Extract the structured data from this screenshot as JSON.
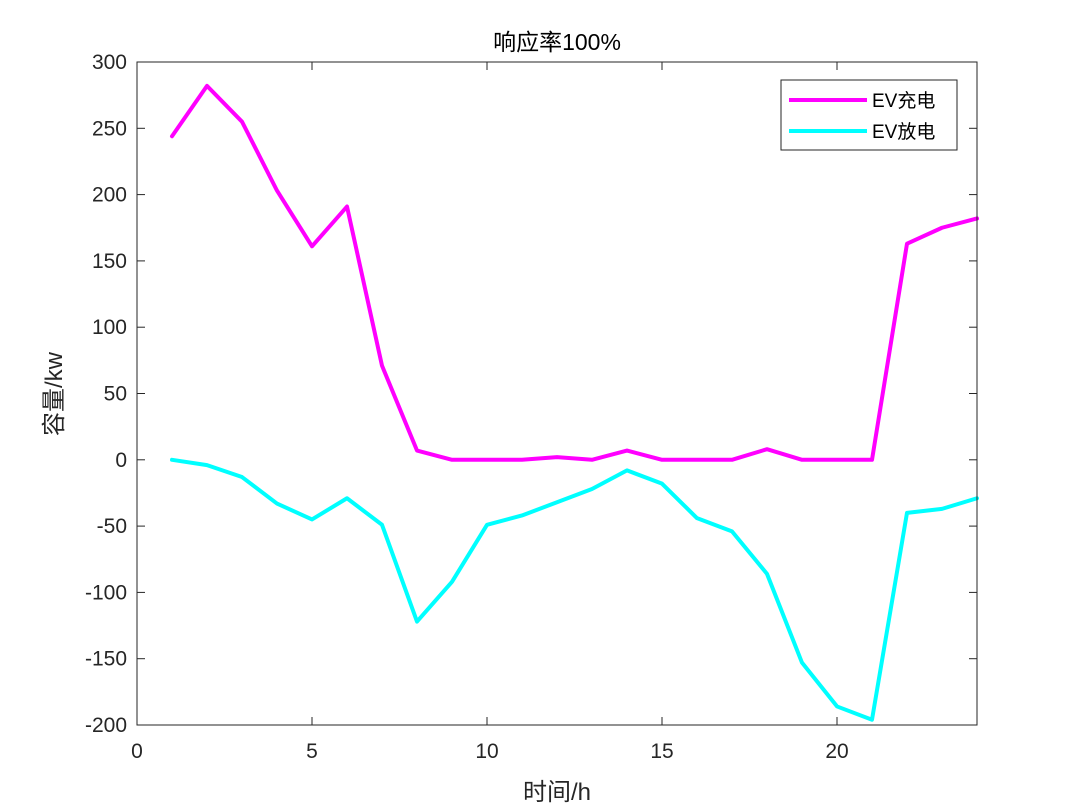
{
  "chart_data": {
    "type": "line",
    "title": "响应率100%",
    "xlabel": "时间/h",
    "ylabel": "容量/kw",
    "xlim": [
      0,
      24
    ],
    "ylim": [
      -200,
      300
    ],
    "xticks": [
      0,
      5,
      10,
      15,
      20
    ],
    "yticks": [
      300,
      250,
      200,
      150,
      100,
      50,
      0,
      -50,
      -100,
      -150,
      -200
    ],
    "grid": false,
    "legend_position": "top-right",
    "x": [
      1,
      2,
      3,
      4,
      5,
      6,
      7,
      8,
      9,
      10,
      11,
      12,
      13,
      14,
      15,
      16,
      17,
      18,
      19,
      20,
      21,
      22,
      23,
      24
    ],
    "series": [
      {
        "name": "EV充电",
        "color": "#ff00ff",
        "values": [
          244,
          282,
          255,
          203,
          161,
          191,
          71,
          7,
          0,
          0,
          0,
          2,
          0,
          7,
          0,
          0,
          0,
          8,
          0,
          0,
          0,
          163,
          175,
          182
        ]
      },
      {
        "name": "EV放电",
        "color": "#00ffff",
        "values": [
          0,
          -4,
          -13,
          -33,
          -45,
          -29,
          -49,
          -122,
          -92,
          -49,
          -42,
          -32,
          -22,
          -8,
          -18,
          -44,
          -54,
          -86,
          -153,
          -186,
          -196,
          -40,
          -37,
          -29
        ]
      }
    ]
  }
}
